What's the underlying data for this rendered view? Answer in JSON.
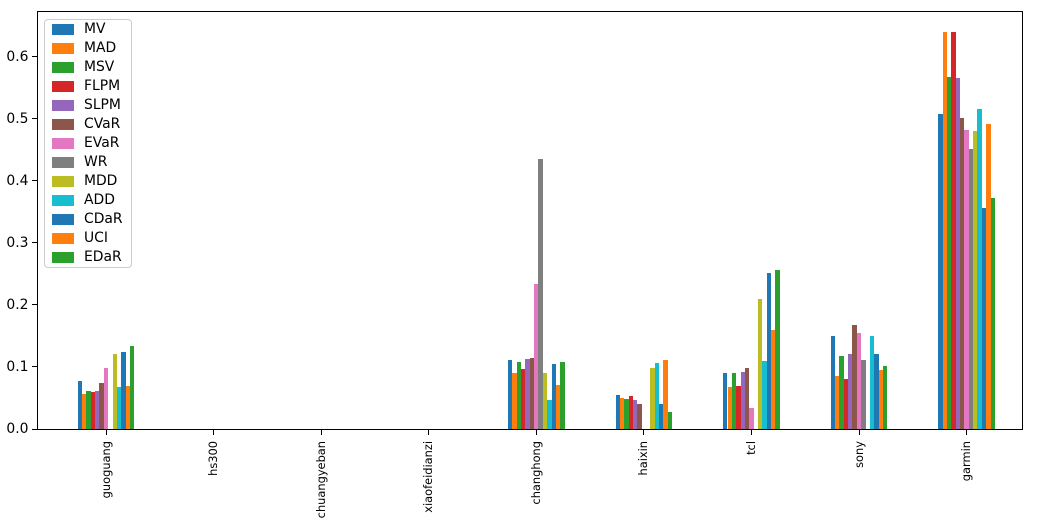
{
  "chart_data": {
    "type": "bar",
    "title": "",
    "xlabel": "",
    "ylabel": "",
    "categories": [
      "guoguang",
      "hs300",
      "chuangyeban",
      "xiaofeidianzi",
      "changhong",
      "haixin",
      "tcl",
      "sony",
      "garmin"
    ],
    "series": [
      {
        "name": "MV",
        "color": "#1f77b4",
        "values": [
          0.078,
          0,
          0,
          0,
          0.111,
          0.055,
          0.091,
          0.15,
          0.508
        ]
      },
      {
        "name": "MAD",
        "color": "#ff7f0e",
        "values": [
          0.056,
          0,
          0,
          0,
          0.09,
          0.05,
          0.068,
          0.085,
          0.64
        ]
      },
      {
        "name": "MSV",
        "color": "#2ca02c",
        "values": [
          0.062,
          0,
          0,
          0,
          0.108,
          0.048,
          0.09,
          0.118,
          0.567
        ]
      },
      {
        "name": "FLPM",
        "color": "#d62728",
        "values": [
          0.059,
          0,
          0,
          0,
          0.096,
          0.053,
          0.069,
          0.081,
          0.64
        ]
      },
      {
        "name": "SLPM",
        "color": "#9467bd",
        "values": [
          0.061,
          0,
          0,
          0,
          0.113,
          0.046,
          0.092,
          0.121,
          0.565
        ]
      },
      {
        "name": "CVaR",
        "color": "#8c564b",
        "values": [
          0.074,
          0,
          0,
          0,
          0.115,
          0.04,
          0.099,
          0.168,
          0.501
        ]
      },
      {
        "name": "EVaR",
        "color": "#e377c2",
        "values": [
          0.098,
          0,
          0,
          0,
          0.233,
          0,
          0.034,
          0.154,
          0.482
        ]
      },
      {
        "name": "WR",
        "color": "#7f7f7f",
        "values": [
          0,
          0,
          0,
          0,
          0.435,
          0,
          0,
          0.111,
          0.451
        ]
      },
      {
        "name": "MDD",
        "color": "#bcbd22",
        "values": [
          0.121,
          0,
          0,
          0,
          0.091,
          0.098,
          0.209,
          0,
          0.48
        ]
      },
      {
        "name": "ADD",
        "color": "#17becf",
        "values": [
          0.067,
          0,
          0,
          0,
          0.047,
          0.107,
          0.11,
          0.15,
          0.516
        ]
      },
      {
        "name": "CDaR",
        "color": "#1f77b4",
        "values": [
          0.124,
          0,
          0,
          0,
          0.104,
          0.041,
          0.252,
          0.121,
          0.356
        ]
      },
      {
        "name": "UCI",
        "color": "#ff7f0e",
        "values": [
          0.069,
          0,
          0,
          0,
          0.071,
          0.112,
          0.16,
          0.095,
          0.491
        ]
      },
      {
        "name": "EDaR",
        "color": "#2ca02c",
        "values": [
          0.133,
          0,
          0,
          0,
          0.108,
          0.028,
          0.256,
          0.102,
          0.372
        ]
      }
    ],
    "ytick_labels": [
      "0.0",
      "0.1",
      "0.2",
      "0.3",
      "0.4",
      "0.5",
      "0.6"
    ],
    "ylim": [
      0,
      0.672
    ],
    "grid": false,
    "legend_position": "upper left",
    "background_color": "#ffffff",
    "axis_color": "#000000",
    "legend_border_color": "#cccccc"
  }
}
